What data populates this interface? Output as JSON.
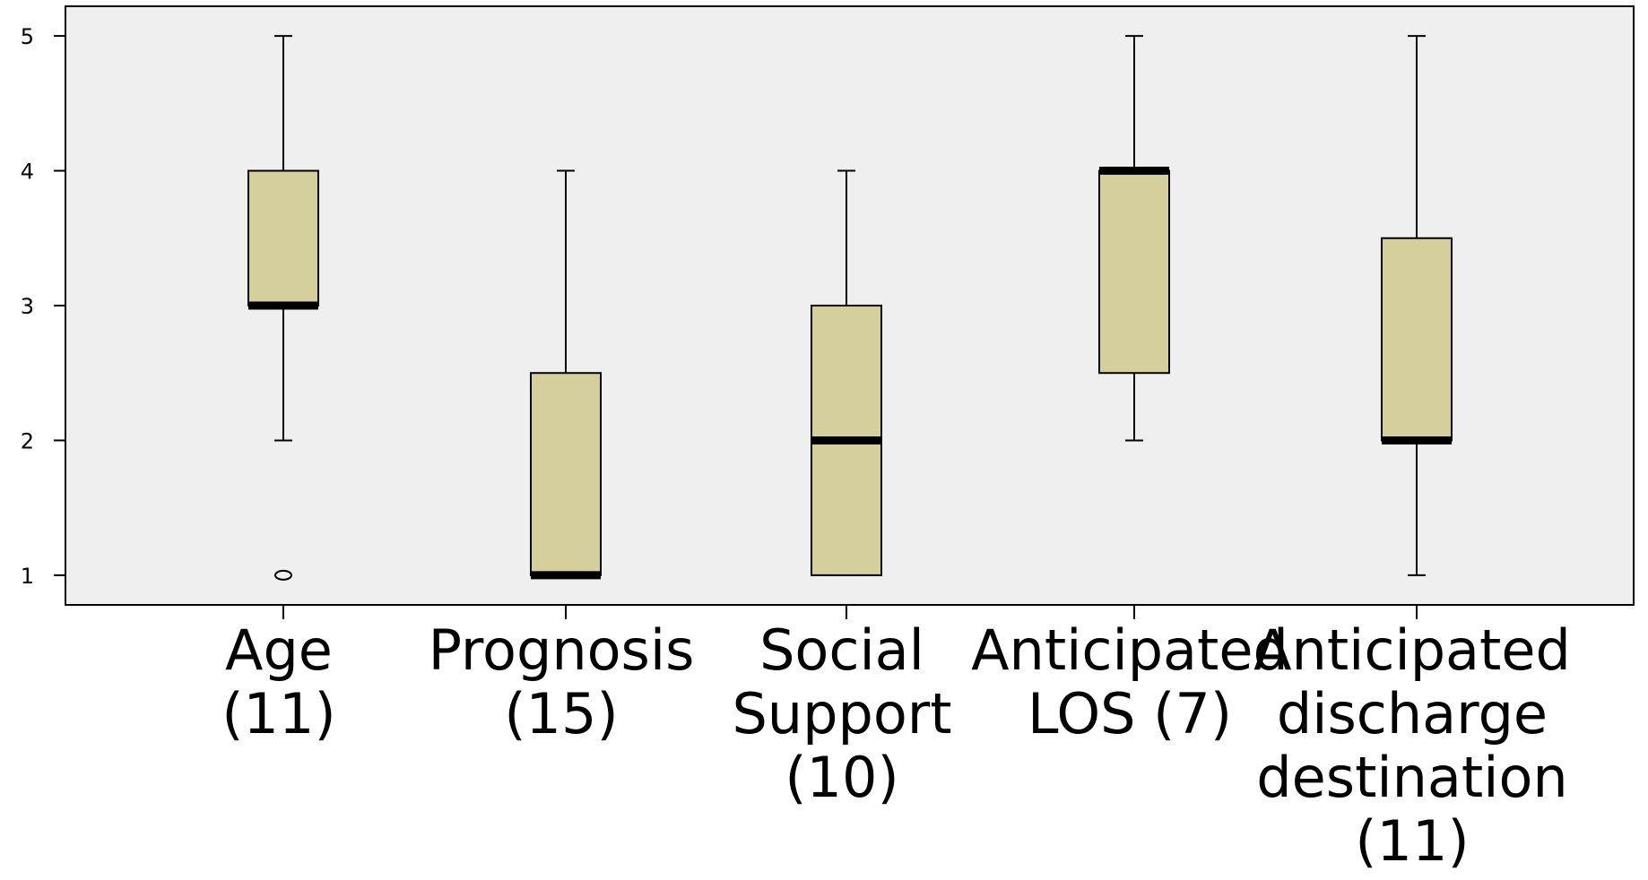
{
  "chart_data": {
    "type": "boxplot",
    "title": "",
    "xlabel": "",
    "ylabel": "",
    "ylim": [
      0.78,
      5.22
    ],
    "yticks": [
      "1",
      "2",
      "3",
      "4",
      "5"
    ],
    "grid": false,
    "legend": "none",
    "colors": {
      "plot_background": "#efefef",
      "box_fill": "#d4cf9c",
      "stroke": "#000000"
    },
    "categories": [
      {
        "lines": [
          "Age",
          "(11)"
        ],
        "min": 2,
        "q1": 3,
        "median": 3,
        "q3": 4,
        "max": 5,
        "outliers": [
          1
        ]
      },
      {
        "lines": [
          "Prognosis",
          "(15)"
        ],
        "min": 1,
        "q1": 1,
        "median": 1,
        "q3": 2.5,
        "max": 4,
        "outliers": []
      },
      {
        "lines": [
          "Social",
          "Support",
          "(10)"
        ],
        "min": 1,
        "q1": 1,
        "median": 2,
        "q3": 3,
        "max": 4,
        "outliers": []
      },
      {
        "lines": [
          "Anticipated",
          "LOS (7)"
        ],
        "min": 2,
        "q1": 2.5,
        "median": 4,
        "q3": 4,
        "max": 5,
        "outliers": []
      },
      {
        "lines": [
          "Anticipated",
          "discharge",
          "destination",
          "(11)"
        ],
        "min": 1,
        "q1": 2,
        "median": 2,
        "q3": 3.5,
        "max": 5,
        "outliers": []
      }
    ]
  }
}
